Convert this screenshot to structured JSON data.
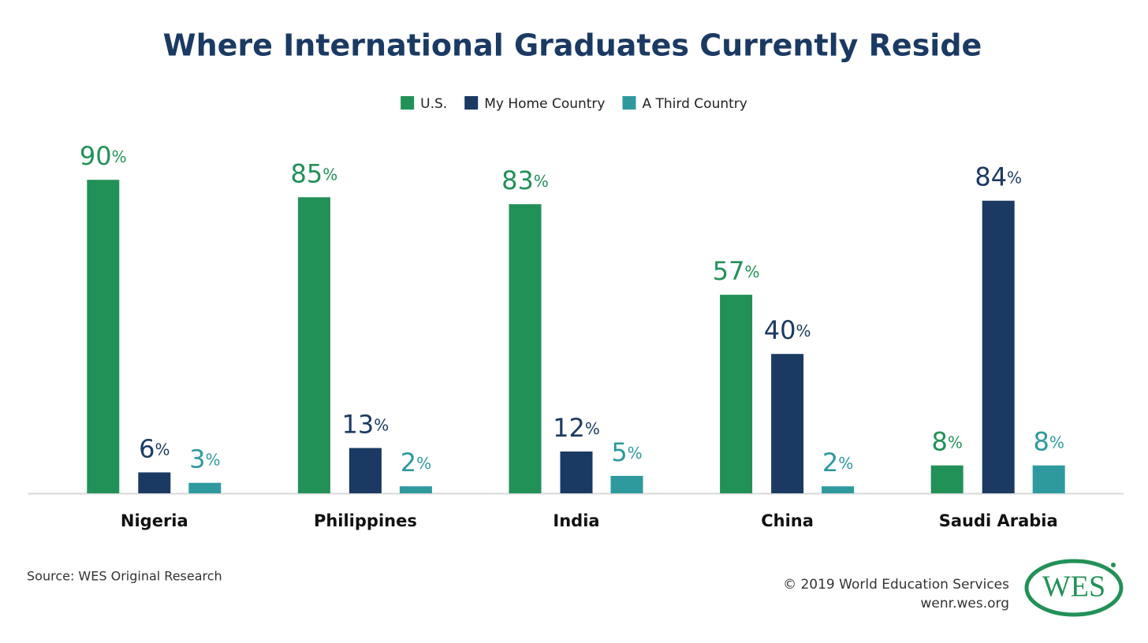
{
  "chart_data": {
    "type": "bar",
    "title": "Where International Graduates Currently Reside",
    "categories": [
      "Nigeria",
      "Philippines",
      "India",
      "China",
      "Saudi Arabia"
    ],
    "series": [
      {
        "name": "U.S.",
        "color": "#229157",
        "values": [
          90,
          85,
          83,
          57,
          8
        ],
        "value_labels": [
          "90%",
          "85%",
          "83%",
          "57%",
          "8%"
        ]
      },
      {
        "name": "My Home Country",
        "color": "#1b3a63",
        "values": [
          6,
          13,
          12,
          40,
          84
        ],
        "value_labels": [
          "6%",
          "13%",
          "12%",
          "40%",
          "84%"
        ]
      },
      {
        "name": "A Third Country",
        "color": "#2e9a9e",
        "values": [
          3,
          2,
          5,
          2,
          8
        ],
        "value_labels": [
          "3%",
          "2%",
          "5%",
          "2%",
          "8%"
        ]
      }
    ],
    "ylim": [
      0,
      100
    ],
    "grid": false,
    "legend": "top"
  },
  "footer": {
    "source": "Source: WES Original Research",
    "copyright": "© 2019 World Education Services",
    "url": "wenr.wes.org",
    "logo": "WES"
  }
}
